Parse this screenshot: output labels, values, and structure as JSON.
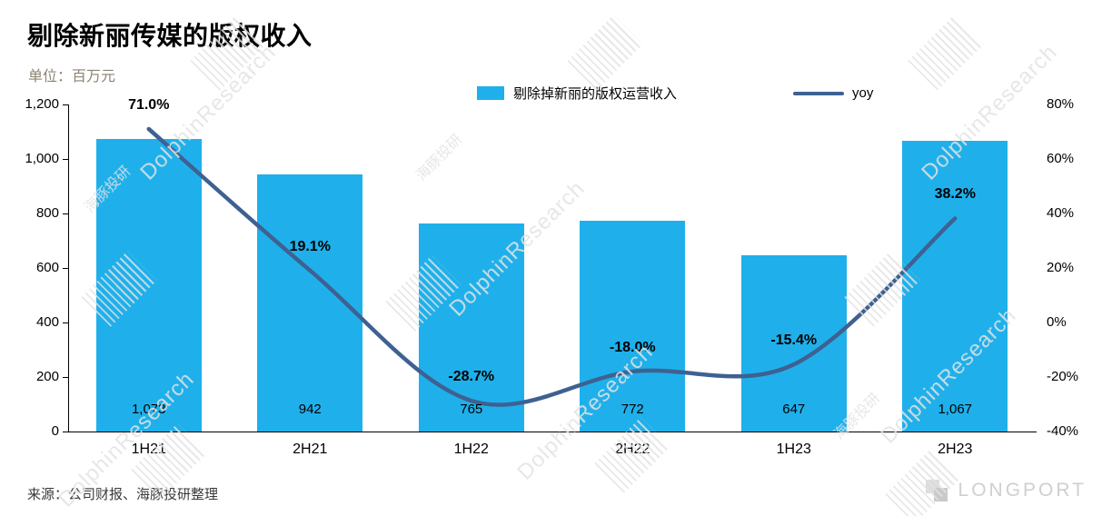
{
  "title": "剔除新丽传媒的版权收入",
  "unit_label": "单位：百万元",
  "legend": {
    "bar_label": "剔除掉新丽的版权运营收入",
    "line_label": "yoy"
  },
  "source": "来源：公司财报、海豚投研整理",
  "brand": "LONGPORT",
  "watermark": {
    "en": "DolphinResearch",
    "cn": "海豚投研"
  },
  "colors": {
    "bar": "#1FB0EB",
    "line": "#3E6191"
  },
  "chart_data": {
    "type": "bar+line",
    "title": "剔除新丽传媒的版权收入",
    "unit": "百万元",
    "categories": [
      "1H21",
      "2H21",
      "1H22",
      "2H22",
      "1H23",
      "2H23"
    ],
    "series": [
      {
        "name": "剔除掉新丽的版权运营收入",
        "type": "bar",
        "axis": "left",
        "values": [
          1073,
          942,
          765,
          772,
          647,
          1067
        ],
        "labels": [
          "1,073",
          "942",
          "765",
          "772",
          "647",
          "1,067"
        ]
      },
      {
        "name": "yoy",
        "type": "line",
        "axis": "right",
        "values": [
          71.0,
          19.1,
          -28.7,
          -18.0,
          -15.4,
          38.2
        ],
        "labels": [
          "71.0%",
          "19.1%",
          "-28.7%",
          "-18.0%",
          "-15.4%",
          "38.2%"
        ]
      }
    ],
    "left_axis": {
      "min": 0,
      "max": 1200,
      "ticks": [
        "1,200",
        "1,000",
        "800",
        "600",
        "400",
        "200",
        "0"
      ]
    },
    "right_axis": {
      "min": -40,
      "max": 80,
      "ticks": [
        "80%",
        "60%",
        "40%",
        "20%",
        "0%",
        "-20%",
        "-40%"
      ]
    },
    "grid": false,
    "legend_position": "top"
  }
}
